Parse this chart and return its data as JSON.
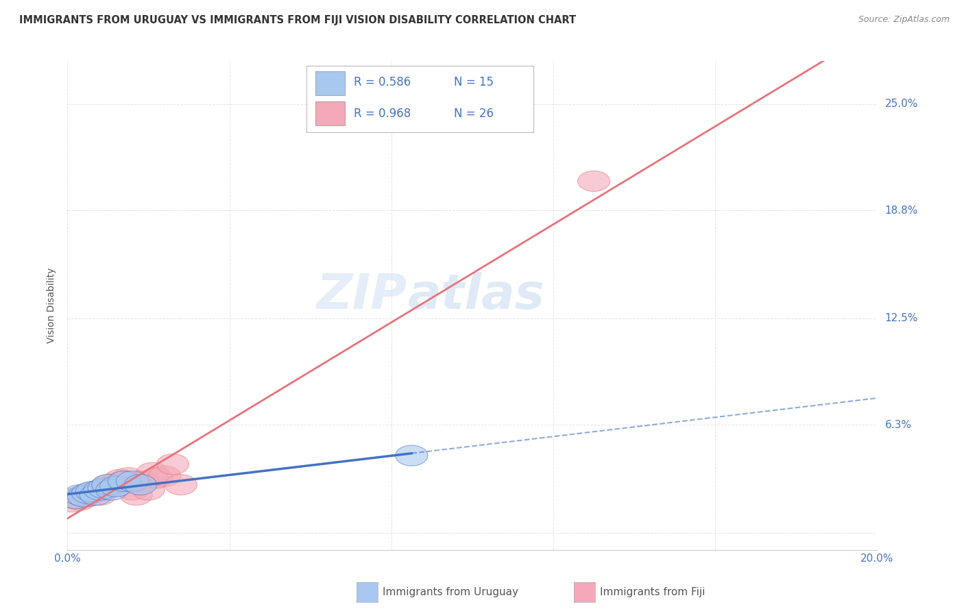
{
  "title": "IMMIGRANTS FROM URUGUAY VS IMMIGRANTS FROM FIJI VISION DISABILITY CORRELATION CHART",
  "source": "Source: ZipAtlas.com",
  "ylabel": "Vision Disability",
  "xlim": [
    0.0,
    0.2
  ],
  "ylim": [
    -0.01,
    0.275
  ],
  "ytick_vals": [
    0.0,
    0.063,
    0.125,
    0.188,
    0.25
  ],
  "ytick_labels": [
    "",
    "6.3%",
    "12.5%",
    "18.8%",
    "25.0%"
  ],
  "xtick_vals": [
    0.0,
    0.04,
    0.08,
    0.12,
    0.16,
    0.2
  ],
  "xtick_labels": [
    "0.0%",
    "",
    "",
    "",
    "",
    "20.0%"
  ],
  "watermark_zip": "ZIP",
  "watermark_atlas": "atlas",
  "legend_r1": "R = 0.586",
  "legend_n1": "N = 15",
  "legend_r2": "R = 0.968",
  "legend_n2": "N = 26",
  "uruguay_scatter_color": "#A8C8F0",
  "fiji_scatter_color": "#F4A8B8",
  "uruguay_line_color": "#4472C4",
  "fiji_line_color": "#E8727A",
  "legend_text_color": "#4472C4",
  "tick_color": "#4472C4",
  "uruguay_x": [
    0.002,
    0.003,
    0.004,
    0.005,
    0.006,
    0.007,
    0.008,
    0.009,
    0.01,
    0.011,
    0.012,
    0.014,
    0.016,
    0.018,
    0.085
  ],
  "uruguay_y": [
    0.02,
    0.022,
    0.021,
    0.023,
    0.024,
    0.022,
    0.025,
    0.026,
    0.028,
    0.025,
    0.027,
    0.03,
    0.03,
    0.028,
    0.045
  ],
  "fiji_x": [
    0.001,
    0.002,
    0.003,
    0.004,
    0.005,
    0.006,
    0.007,
    0.008,
    0.009,
    0.01,
    0.011,
    0.012,
    0.013,
    0.014,
    0.015,
    0.016,
    0.017,
    0.018,
    0.019,
    0.02,
    0.021,
    0.022,
    0.024,
    0.026,
    0.028,
    0.13
  ],
  "fiji_y": [
    0.018,
    0.02,
    0.019,
    0.022,
    0.021,
    0.023,
    0.024,
    0.022,
    0.025,
    0.028,
    0.027,
    0.029,
    0.031,
    0.03,
    0.032,
    0.025,
    0.022,
    0.03,
    0.03,
    0.025,
    0.035,
    0.032,
    0.033,
    0.04,
    0.028,
    0.205
  ],
  "background_color": "#FFFFFF",
  "grid_color": "#DDDDDD"
}
